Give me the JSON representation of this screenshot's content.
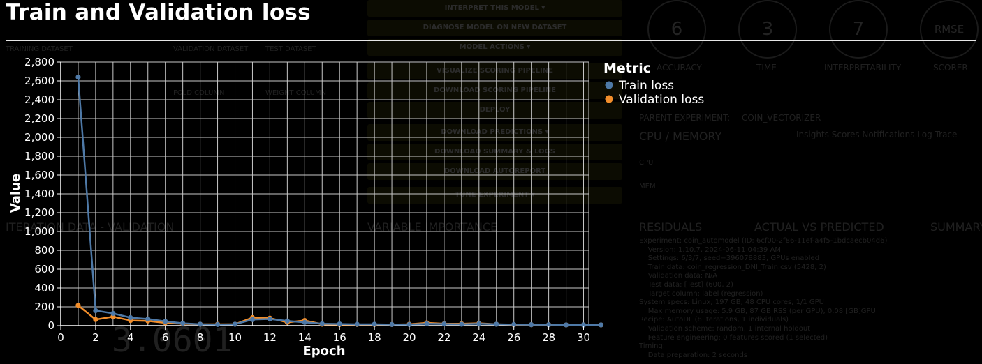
{
  "background": {
    "buttons": [
      "INTERPRET THIS MODEL ▾",
      "DIAGNOSE MODEL ON NEW DATASET",
      "MODEL ACTIONS ▾",
      "VISUALIZE SCORING PIPELINE",
      "DOWNLOAD SCORING PIPELINE",
      "DEPLOY",
      "DOWNLOAD PREDICTIONS ▾",
      "DOWNLOAD SUMMARY & LOGS",
      "DOWNLOAD AUTOREPORT",
      "TUNE EXPERIMENT ▾"
    ],
    "dials": [
      {
        "value": "6",
        "label": "ACCURACY"
      },
      {
        "value": "3",
        "label": "TIME"
      },
      {
        "value": "7",
        "label": "INTERPRETABILITY"
      },
      {
        "value": "RMSE",
        "label": "SCORER"
      }
    ],
    "labels": {
      "training_dataset": "TRAINING DATASET",
      "validation_dataset": "VALIDATION DATASET",
      "test_dataset": "TEST DATASET",
      "fold_column": "FOLD COLUMN",
      "weight_column": "WEIGHT COLUMN",
      "iteration_data": "ITERATION DATA - VALIDATION",
      "variable_importance": "VARIABLE IMPORTANCE",
      "parent_experiment": "PARENT EXPERIMENT:",
      "parent_value": "COIN_VECTORIZER",
      "cpu_memory": "CPU / MEMORY",
      "tabs": "Insights   Scores   Notifications   Log   Trace",
      "cpu": "CPU",
      "mem": "MEM",
      "residuals": "RESIDUALS",
      "actual_vs_predicted": "ACTUAL VS PREDICTED",
      "summary": "SUMMARY",
      "big_score": "3.0601"
    },
    "log": "Experiment: coin_automodel (ID: 6cf00-2f86-11ef-a4f5-1bdcaecb04d6)\n    Version: 1.10.7, 2024-06-11 04:39 AM\n    Settings: 6/3/7, seed=396078883, GPUs enabled\n    Train data: coin_regression_DNI_Train.csv (5428, 2)\n    Validation data: N/A\n    Test data: [Test] (600, 2)\n    Target column: label (regression)\nSystem specs: Linux, 197 GB, 48 CPU cores, 1/1 GPU\n    Max memory usage: 5.9 GB, 87 GB RSS (per GPU), 0.08 [GB]GPU\nRecipe: AutoDL (8 iterations, 1 individuals)\n    Validation scheme: random, 1 internal holdout\n    Feature engineering: 0 features scored (1 selected)\nTiming:\n    Data preparation: 2 seconds"
  },
  "modal": {
    "title": "Train and Validation loss"
  },
  "chart_data": {
    "type": "line",
    "title": "Train and Validation loss",
    "xlabel": "Epoch",
    "ylabel": "Value",
    "xlim": [
      0,
      30.3
    ],
    "ylim": [
      0,
      2800
    ],
    "x_ticks": [
      0,
      2,
      4,
      6,
      8,
      10,
      12,
      14,
      16,
      18,
      20,
      22,
      24,
      26,
      28,
      30
    ],
    "y_ticks": [
      0,
      200,
      400,
      600,
      800,
      1000,
      1200,
      1400,
      1600,
      1800,
      2000,
      2200,
      2400,
      2600,
      2800
    ],
    "y_tick_labels": [
      "0",
      "200",
      "400",
      "600",
      "800",
      "1,000",
      "1,200",
      "1,400",
      "1,600",
      "1,800",
      "2,000",
      "2,200",
      "2,400",
      "2,600",
      "2,800"
    ],
    "grid": true,
    "legend": {
      "title": "Metric",
      "placement": "right"
    },
    "x": [
      1,
      2,
      3,
      4,
      5,
      6,
      7,
      8,
      9,
      10,
      11,
      12,
      13,
      14,
      15,
      16,
      17,
      18,
      19,
      20,
      21,
      22,
      23,
      24,
      25,
      26,
      27,
      28,
      29,
      30,
      31
    ],
    "series": [
      {
        "name": "Train loss",
        "color": "#4e79a7",
        "values": [
          2640,
          160,
          130,
          85,
          70,
          45,
          25,
          15,
          12,
          15,
          65,
          70,
          50,
          35,
          20,
          18,
          15,
          15,
          12,
          12,
          20,
          18,
          15,
          20,
          15,
          12,
          10,
          10,
          8,
          8,
          8
        ]
      },
      {
        "name": "Validation loss",
        "color": "#f28e2b",
        "values": [
          215,
          65,
          95,
          55,
          50,
          30,
          20,
          15,
          15,
          15,
          85,
          80,
          35,
          55,
          15,
          12,
          12,
          12,
          12,
          15,
          30,
          20,
          20,
          25,
          15,
          10,
          10,
          10,
          8,
          8,
          8
        ]
      }
    ]
  }
}
